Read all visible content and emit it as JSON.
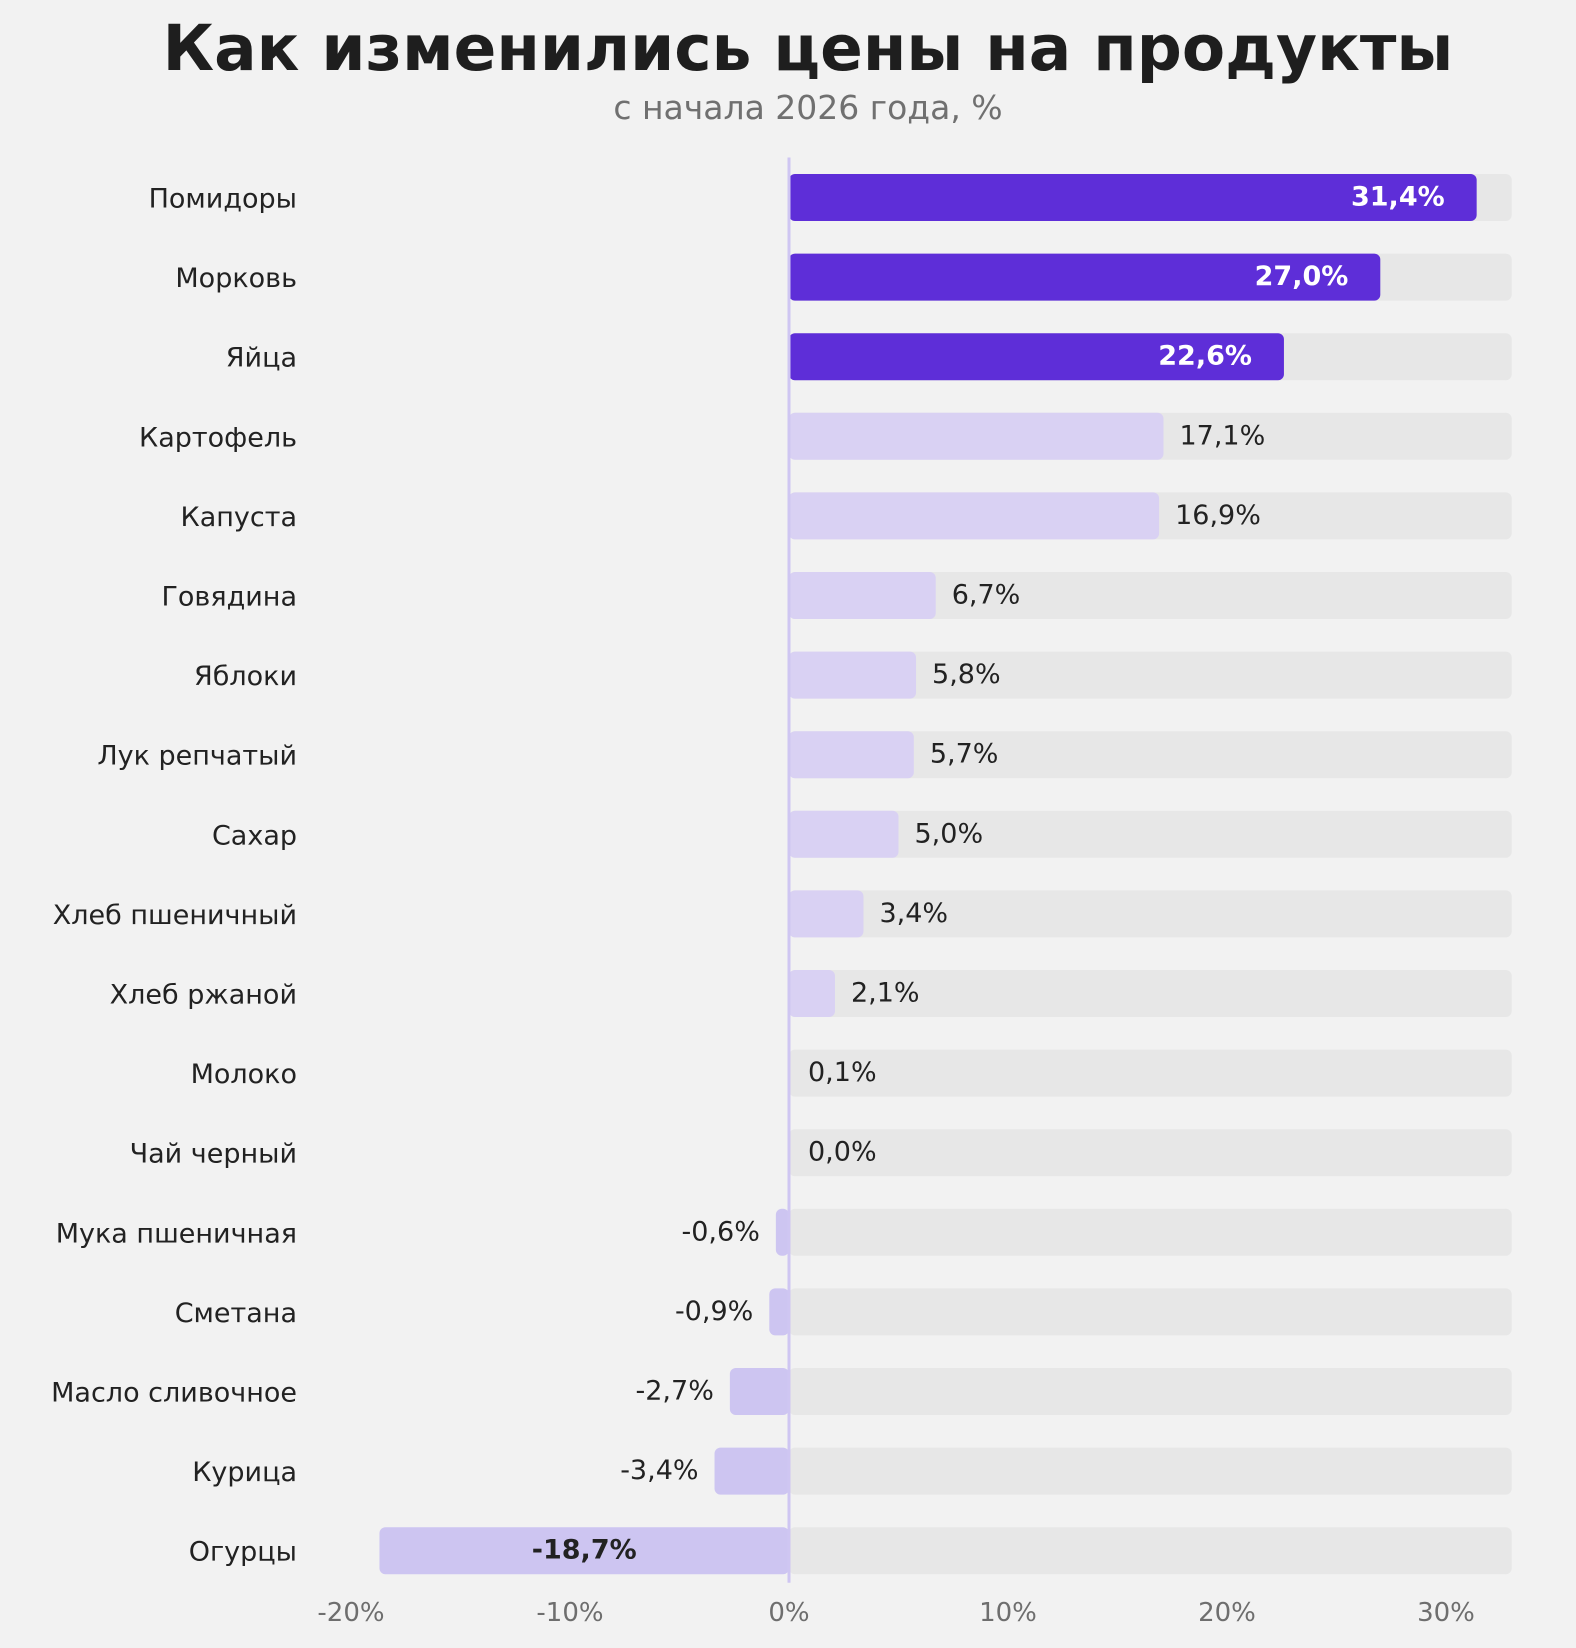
{
  "chart_data": {
    "type": "bar",
    "orientation": "horizontal",
    "title": "Как изменились цены на продукты",
    "subtitle": "с начала 2026 года, %",
    "categories": [
      "Помидоры",
      "Морковь",
      "Яйца",
      "Картофель",
      "Капуста",
      "Говядина",
      "Яблоки",
      "Лук репчатый",
      "Сахар",
      "Хлеб пшеничный",
      "Хлеб ржаной",
      "Молоко",
      "Чай черный",
      "Мука пшеничная",
      "Сметана",
      "Масло сливочное",
      "Курица",
      "Огурцы"
    ],
    "values": [
      31.4,
      27.0,
      22.6,
      17.1,
      16.9,
      6.7,
      5.8,
      5.7,
      5.0,
      3.4,
      2.1,
      0.1,
      0.0,
      -0.6,
      -0.9,
      -2.7,
      -3.4,
      -18.7
    ],
    "value_labels": [
      "31,4%",
      "27,0%",
      "22,6%",
      "17,1%",
      "16,9%",
      "6,7%",
      "5,8%",
      "5,7%",
      "5,0%",
      "3,4%",
      "2,1%",
      "0,1%",
      "0,0%",
      "-0,6%",
      "-0,9%",
      "-2,7%",
      "-3,4%",
      "-18,7%"
    ],
    "highlighted": [
      true,
      true,
      true,
      false,
      false,
      false,
      false,
      false,
      false,
      false,
      false,
      false,
      false,
      false,
      false,
      false,
      false,
      true
    ],
    "xlim": [
      -20,
      33
    ],
    "track_max": 33,
    "xticks": [
      -20,
      -10,
      0,
      10,
      20,
      30
    ],
    "xtick_labels": [
      "-20%",
      "-10%",
      "0%",
      "10%",
      "20%",
      "30%"
    ],
    "grid": false,
    "xlabel": "",
    "ylabel": ""
  },
  "colors": {
    "background": "#f2f2f2",
    "track": "#e7e7e7",
    "highlight_positive": "#5e2ed8",
    "positive": "#d9d1f3",
    "negative": "#cdc5f1",
    "zero_line": "#cfc6f2",
    "label_text": "#222222",
    "highlight_label_text": "#ffffff",
    "tick_text": "#6e6e6e",
    "subtitle_text": "#707070",
    "title_text": "#1e1e1e"
  }
}
